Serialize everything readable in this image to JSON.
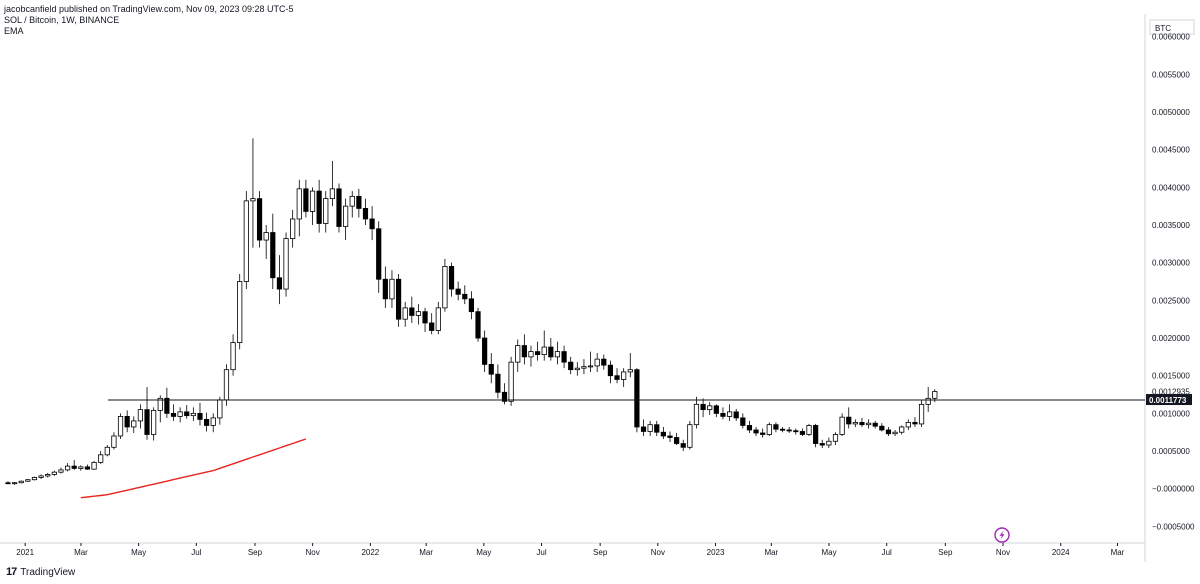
{
  "header": {
    "publisher_line": "jacobcanfield published on TradingView.com, Nov 09, 2023 09:28 UTC-5",
    "symbol_line": "SOL / Bitcoin, 1W, BINANCE",
    "indicator_line": "EMA"
  },
  "footer": {
    "brand": "TradingView",
    "logo_glyph": "17"
  },
  "price_axis": {
    "currency_label": "BTC",
    "tick_labels": [
      "0.0060000",
      "0.0055000",
      "0.0050000",
      "0.0045000",
      "0.0040000",
      "0.0035000",
      "0.0030000",
      "0.0025000",
      "0.0020000",
      "0.0015000",
      "0.0010000",
      "0.0005000",
      "−0.0000000",
      "−0.0005000"
    ],
    "current_price_label": "0.0012935",
    "level_label": "0.0011773"
  },
  "chart_data": {
    "type": "candlestick",
    "title": "SOL / Bitcoin, 1W, BINANCE",
    "ylim": [
      -0.00072,
      0.0063
    ],
    "y_ticks": [
      0.006,
      0.0055,
      0.005,
      0.0045,
      0.004,
      0.0035,
      0.003,
      0.0025,
      0.002,
      0.0015,
      0.001,
      0.0005,
      0.0,
      -0.0005
    ],
    "x_ticks": [
      "2021",
      "Mar",
      "May",
      "Jul",
      "Sep",
      "Nov",
      "2022",
      "Mar",
      "May",
      "Jul",
      "Sep",
      "Nov",
      "2023",
      "Mar",
      "May",
      "Jul",
      "Sep",
      "Nov",
      "2024",
      "Mar"
    ],
    "horizontal_level": 0.0011773,
    "current_price": 0.0012935,
    "start_week": "2021-01-04",
    "grid": false,
    "candles": [
      {
        "o": 8e-05,
        "h": 0.0001,
        "l": 6e-05,
        "c": 7e-05
      },
      {
        "o": 7e-05,
        "h": 9e-05,
        "l": 5e-05,
        "c": 8e-05
      },
      {
        "o": 8e-05,
        "h": 0.00011,
        "l": 7e-05,
        "c": 0.0001
      },
      {
        "o": 0.0001,
        "h": 0.00013,
        "l": 9e-05,
        "c": 0.00012
      },
      {
        "o": 0.00012,
        "h": 0.00016,
        "l": 0.00011,
        "c": 0.00015
      },
      {
        "o": 0.00015,
        "h": 0.00019,
        "l": 0.00013,
        "c": 0.00017
      },
      {
        "o": 0.00017,
        "h": 0.00021,
        "l": 0.00015,
        "c": 0.00019
      },
      {
        "o": 0.00019,
        "h": 0.00024,
        "l": 0.00017,
        "c": 0.00022
      },
      {
        "o": 0.00022,
        "h": 0.00028,
        "l": 0.0002,
        "c": 0.00025
      },
      {
        "o": 0.00025,
        "h": 0.00034,
        "l": 0.00023,
        "c": 0.0003
      },
      {
        "o": 0.0003,
        "h": 0.00038,
        "l": 0.00025,
        "c": 0.00027
      },
      {
        "o": 0.00027,
        "h": 0.00031,
        "l": 0.00024,
        "c": 0.00029
      },
      {
        "o": 0.00029,
        "h": 0.00032,
        "l": 0.00025,
        "c": 0.00026
      },
      {
        "o": 0.00026,
        "h": 0.00037,
        "l": 0.00025,
        "c": 0.00035
      },
      {
        "o": 0.00035,
        "h": 0.0005,
        "l": 0.00033,
        "c": 0.00045
      },
      {
        "o": 0.00045,
        "h": 0.00058,
        "l": 0.00043,
        "c": 0.00055
      },
      {
        "o": 0.00055,
        "h": 0.00075,
        "l": 0.00052,
        "c": 0.0007
      },
      {
        "o": 0.0007,
        "h": 0.001,
        "l": 0.00066,
        "c": 0.00096
      },
      {
        "o": 0.00096,
        "h": 0.00104,
        "l": 0.00075,
        "c": 0.00082
      },
      {
        "o": 0.00082,
        "h": 0.00096,
        "l": 0.00074,
        "c": 0.0009
      },
      {
        "o": 0.0009,
        "h": 0.00112,
        "l": 0.0008,
        "c": 0.00105
      },
      {
        "o": 0.00105,
        "h": 0.00135,
        "l": 0.00065,
        "c": 0.00072
      },
      {
        "o": 0.00072,
        "h": 0.00108,
        "l": 0.00064,
        "c": 0.00104
      },
      {
        "o": 0.00104,
        "h": 0.00124,
        "l": 0.00088,
        "c": 0.0012
      },
      {
        "o": 0.0012,
        "h": 0.00134,
        "l": 0.00094,
        "c": 0.001
      },
      {
        "o": 0.001,
        "h": 0.00112,
        "l": 0.0009,
        "c": 0.00096
      },
      {
        "o": 0.00096,
        "h": 0.00108,
        "l": 0.00088,
        "c": 0.00102
      },
      {
        "o": 0.00102,
        "h": 0.00111,
        "l": 0.00093,
        "c": 0.00097
      },
      {
        "o": 0.00097,
        "h": 0.00108,
        "l": 0.0009,
        "c": 0.001
      },
      {
        "o": 0.001,
        "h": 0.00114,
        "l": 0.00084,
        "c": 0.00092
      },
      {
        "o": 0.00092,
        "h": 0.00101,
        "l": 0.00076,
        "c": 0.00084
      },
      {
        "o": 0.00084,
        "h": 0.001,
        "l": 0.00075,
        "c": 0.00094
      },
      {
        "o": 0.00094,
        "h": 0.00122,
        "l": 0.00085,
        "c": 0.00118
      },
      {
        "o": 0.00118,
        "h": 0.00165,
        "l": 0.0011,
        "c": 0.00158
      },
      {
        "o": 0.00158,
        "h": 0.00205,
        "l": 0.0015,
        "c": 0.00194
      },
      {
        "o": 0.00194,
        "h": 0.00285,
        "l": 0.00185,
        "c": 0.00275
      },
      {
        "o": 0.00275,
        "h": 0.00395,
        "l": 0.00265,
        "c": 0.00382
      },
      {
        "o": 0.00382,
        "h": 0.00465,
        "l": 0.0032,
        "c": 0.00385
      },
      {
        "o": 0.00385,
        "h": 0.00395,
        "l": 0.0032,
        "c": 0.0033
      },
      {
        "o": 0.0033,
        "h": 0.0035,
        "l": 0.00305,
        "c": 0.0034
      },
      {
        "o": 0.0034,
        "h": 0.00365,
        "l": 0.00265,
        "c": 0.0028
      },
      {
        "o": 0.0028,
        "h": 0.0031,
        "l": 0.00245,
        "c": 0.00265
      },
      {
        "o": 0.00265,
        "h": 0.0034,
        "l": 0.00255,
        "c": 0.00332
      },
      {
        "o": 0.00332,
        "h": 0.0037,
        "l": 0.0032,
        "c": 0.00358
      },
      {
        "o": 0.00358,
        "h": 0.0041,
        "l": 0.00335,
        "c": 0.00398
      },
      {
        "o": 0.00398,
        "h": 0.0041,
        "l": 0.0036,
        "c": 0.00368
      },
      {
        "o": 0.00368,
        "h": 0.004,
        "l": 0.0035,
        "c": 0.00395
      },
      {
        "o": 0.00395,
        "h": 0.0041,
        "l": 0.0034,
        "c": 0.00352
      },
      {
        "o": 0.00352,
        "h": 0.00395,
        "l": 0.0034,
        "c": 0.00385
      },
      {
        "o": 0.00385,
        "h": 0.00435,
        "l": 0.00375,
        "c": 0.00398
      },
      {
        "o": 0.00398,
        "h": 0.00405,
        "l": 0.0034,
        "c": 0.00348
      },
      {
        "o": 0.00348,
        "h": 0.00385,
        "l": 0.0033,
        "c": 0.00375
      },
      {
        "o": 0.00375,
        "h": 0.00395,
        "l": 0.0036,
        "c": 0.00388
      },
      {
        "o": 0.00388,
        "h": 0.00398,
        "l": 0.0036,
        "c": 0.00372
      },
      {
        "o": 0.00372,
        "h": 0.00385,
        "l": 0.0035,
        "c": 0.00358
      },
      {
        "o": 0.00358,
        "h": 0.00375,
        "l": 0.0033,
        "c": 0.00345
      },
      {
        "o": 0.00345,
        "h": 0.00355,
        "l": 0.0026,
        "c": 0.00278
      },
      {
        "o": 0.00278,
        "h": 0.00295,
        "l": 0.0024,
        "c": 0.00252
      },
      {
        "o": 0.00252,
        "h": 0.0029,
        "l": 0.0024,
        "c": 0.00278
      },
      {
        "o": 0.00278,
        "h": 0.00285,
        "l": 0.00215,
        "c": 0.00225
      },
      {
        "o": 0.00225,
        "h": 0.00248,
        "l": 0.00215,
        "c": 0.0024
      },
      {
        "o": 0.0024,
        "h": 0.00255,
        "l": 0.0022,
        "c": 0.0023
      },
      {
        "o": 0.0023,
        "h": 0.00245,
        "l": 0.00218,
        "c": 0.00235
      },
      {
        "o": 0.00235,
        "h": 0.0024,
        "l": 0.00208,
        "c": 0.0022
      },
      {
        "o": 0.0022,
        "h": 0.00233,
        "l": 0.00205,
        "c": 0.0021
      },
      {
        "o": 0.0021,
        "h": 0.00248,
        "l": 0.00205,
        "c": 0.0024
      },
      {
        "o": 0.0024,
        "h": 0.00305,
        "l": 0.00235,
        "c": 0.00295
      },
      {
        "o": 0.00295,
        "h": 0.003,
        "l": 0.00255,
        "c": 0.00265
      },
      {
        "o": 0.00265,
        "h": 0.00275,
        "l": 0.0025,
        "c": 0.00258
      },
      {
        "o": 0.00258,
        "h": 0.0027,
        "l": 0.00245,
        "c": 0.00252
      },
      {
        "o": 0.00252,
        "h": 0.00262,
        "l": 0.00225,
        "c": 0.00235
      },
      {
        "o": 0.00235,
        "h": 0.0024,
        "l": 0.00195,
        "c": 0.002
      },
      {
        "o": 0.002,
        "h": 0.0021,
        "l": 0.00155,
        "c": 0.00165
      },
      {
        "o": 0.00165,
        "h": 0.0018,
        "l": 0.0014,
        "c": 0.00152
      },
      {
        "o": 0.00152,
        "h": 0.00165,
        "l": 0.0012,
        "c": 0.00128
      },
      {
        "o": 0.00128,
        "h": 0.0014,
        "l": 0.00112,
        "c": 0.00116
      },
      {
        "o": 0.00116,
        "h": 0.00175,
        "l": 0.0011,
        "c": 0.00168
      },
      {
        "o": 0.00168,
        "h": 0.00198,
        "l": 0.00155,
        "c": 0.0019
      },
      {
        "o": 0.0019,
        "h": 0.00205,
        "l": 0.00165,
        "c": 0.00175
      },
      {
        "o": 0.00175,
        "h": 0.0019,
        "l": 0.00162,
        "c": 0.00182
      },
      {
        "o": 0.00182,
        "h": 0.00195,
        "l": 0.0017,
        "c": 0.00178
      },
      {
        "o": 0.00178,
        "h": 0.0021,
        "l": 0.0017,
        "c": 0.00188
      },
      {
        "o": 0.00188,
        "h": 0.002,
        "l": 0.0017,
        "c": 0.00175
      },
      {
        "o": 0.00175,
        "h": 0.00195,
        "l": 0.00165,
        "c": 0.00182
      },
      {
        "o": 0.00182,
        "h": 0.0019,
        "l": 0.0016,
        "c": 0.00168
      },
      {
        "o": 0.00168,
        "h": 0.00175,
        "l": 0.00152,
        "c": 0.00158
      },
      {
        "o": 0.00158,
        "h": 0.00168,
        "l": 0.0015,
        "c": 0.0016
      },
      {
        "o": 0.0016,
        "h": 0.00172,
        "l": 0.00152,
        "c": 0.00162
      },
      {
        "o": 0.00162,
        "h": 0.00182,
        "l": 0.00155,
        "c": 0.00163
      },
      {
        "o": 0.00163,
        "h": 0.0018,
        "l": 0.00155,
        "c": 0.00172
      },
      {
        "o": 0.00172,
        "h": 0.00178,
        "l": 0.00158,
        "c": 0.00164
      },
      {
        "o": 0.00164,
        "h": 0.0017,
        "l": 0.0014,
        "c": 0.0015
      },
      {
        "o": 0.0015,
        "h": 0.0016,
        "l": 0.0014,
        "c": 0.00145
      },
      {
        "o": 0.00145,
        "h": 0.0016,
        "l": 0.00135,
        "c": 0.00155
      },
      {
        "o": 0.00155,
        "h": 0.0018,
        "l": 0.00148,
        "c": 0.00158
      },
      {
        "o": 0.00158,
        "h": 0.0016,
        "l": 0.00075,
        "c": 0.00082
      },
      {
        "o": 0.00082,
        "h": 0.00092,
        "l": 0.0007,
        "c": 0.00076
      },
      {
        "o": 0.00076,
        "h": 0.0009,
        "l": 0.0007,
        "c": 0.00085
      },
      {
        "o": 0.00085,
        "h": 0.0009,
        "l": 0.0007,
        "c": 0.00075
      },
      {
        "o": 0.00075,
        "h": 0.00082,
        "l": 0.00066,
        "c": 0.0007
      },
      {
        "o": 0.0007,
        "h": 0.00076,
        "l": 0.00062,
        "c": 0.00068
      },
      {
        "o": 0.00068,
        "h": 0.00074,
        "l": 0.00058,
        "c": 0.0006
      },
      {
        "o": 0.0006,
        "h": 0.00065,
        "l": 0.0005,
        "c": 0.00055
      },
      {
        "o": 0.00055,
        "h": 0.0009,
        "l": 0.00052,
        "c": 0.00085
      },
      {
        "o": 0.00085,
        "h": 0.00122,
        "l": 0.0008,
        "c": 0.00112
      },
      {
        "o": 0.00112,
        "h": 0.0012,
        "l": 0.00095,
        "c": 0.00105
      },
      {
        "o": 0.00105,
        "h": 0.00115,
        "l": 0.00098,
        "c": 0.0011
      },
      {
        "o": 0.0011,
        "h": 0.00112,
        "l": 0.00095,
        "c": 0.001
      },
      {
        "o": 0.001,
        "h": 0.00108,
        "l": 0.00092,
        "c": 0.00096
      },
      {
        "o": 0.00096,
        "h": 0.00112,
        "l": 0.0009,
        "c": 0.00102
      },
      {
        "o": 0.00102,
        "h": 0.00106,
        "l": 0.0009,
        "c": 0.00094
      },
      {
        "o": 0.00094,
        "h": 0.001,
        "l": 0.0008,
        "c": 0.00084
      },
      {
        "o": 0.00084,
        "h": 0.0009,
        "l": 0.00074,
        "c": 0.00078
      },
      {
        "o": 0.00078,
        "h": 0.00082,
        "l": 0.0007,
        "c": 0.00074
      },
      {
        "o": 0.00074,
        "h": 0.0008,
        "l": 0.00068,
        "c": 0.00072
      },
      {
        "o": 0.00072,
        "h": 0.00088,
        "l": 0.0007,
        "c": 0.00085
      },
      {
        "o": 0.00085,
        "h": 0.00088,
        "l": 0.00075,
        "c": 0.00079
      },
      {
        "o": 0.00079,
        "h": 0.00082,
        "l": 0.00075,
        "c": 0.00078
      },
      {
        "o": 0.00078,
        "h": 0.00082,
        "l": 0.00074,
        "c": 0.00077
      },
      {
        "o": 0.00077,
        "h": 0.0008,
        "l": 0.00072,
        "c": 0.00076
      },
      {
        "o": 0.00076,
        "h": 0.0008,
        "l": 0.0007,
        "c": 0.00072
      },
      {
        "o": 0.00072,
        "h": 0.00086,
        "l": 0.0007,
        "c": 0.00084
      },
      {
        "o": 0.00084,
        "h": 0.00086,
        "l": 0.00055,
        "c": 0.0006
      },
      {
        "o": 0.0006,
        "h": 0.00065,
        "l": 0.00054,
        "c": 0.00058
      },
      {
        "o": 0.00058,
        "h": 0.00068,
        "l": 0.00054,
        "c": 0.00063
      },
      {
        "o": 0.00063,
        "h": 0.00075,
        "l": 0.00058,
        "c": 0.00072
      },
      {
        "o": 0.00072,
        "h": 0.001,
        "l": 0.0007,
        "c": 0.00095
      },
      {
        "o": 0.00095,
        "h": 0.00108,
        "l": 0.0008,
        "c": 0.00086
      },
      {
        "o": 0.00086,
        "h": 0.00092,
        "l": 0.00082,
        "c": 0.00088
      },
      {
        "o": 0.00088,
        "h": 0.00094,
        "l": 0.00082,
        "c": 0.00085
      },
      {
        "o": 0.00085,
        "h": 0.00092,
        "l": 0.0008,
        "c": 0.00087
      },
      {
        "o": 0.00087,
        "h": 0.0009,
        "l": 0.0008,
        "c": 0.00083
      },
      {
        "o": 0.00083,
        "h": 0.00087,
        "l": 0.00076,
        "c": 0.00078
      },
      {
        "o": 0.00078,
        "h": 0.00082,
        "l": 0.0007,
        "c": 0.00073
      },
      {
        "o": 0.00073,
        "h": 0.00078,
        "l": 0.0007,
        "c": 0.00075
      },
      {
        "o": 0.00075,
        "h": 0.00084,
        "l": 0.00072,
        "c": 0.00082
      },
      {
        "o": 0.00082,
        "h": 0.00092,
        "l": 0.00078,
        "c": 0.00088
      },
      {
        "o": 0.00088,
        "h": 0.00095,
        "l": 0.00082,
        "c": 0.00086
      },
      {
        "o": 0.00086,
        "h": 0.00118,
        "l": 0.00082,
        "c": 0.00112
      },
      {
        "o": 0.00112,
        "h": 0.00135,
        "l": 0.00102,
        "c": 0.0012
      },
      {
        "o": 0.0012,
        "h": 0.00132,
        "l": 0.00115,
        "c": 0.00129
      }
    ],
    "ema": [
      4e-05,
      5e-05,
      6e-05,
      7e-05,
      8e-05,
      0.0001,
      0.00012,
      0.00014,
      0.00016,
      0.00018,
      0.0002,
      0.00022,
      0.00024,
      0.00026,
      0.00028,
      0.0003,
      0.00032,
      0.00034,
      0.00036,
      0.00038,
      0.0004,
      0.00043,
      0.00046,
      0.00049,
      0.00052,
      0.00055,
      0.00058,
      0.00061,
      0.00064,
      0.00067,
      0.0007,
      0.00073,
      0.00076,
      0.00079,
      0.00082
    ],
    "ema_start_index": 10,
    "ema_color": "#e8251f",
    "up_color": "#ffffff",
    "down_color": "#000000",
    "wick_color": "#000000"
  },
  "event_icon": "lightning-icon",
  "event_icon_color": "#9c27b0"
}
